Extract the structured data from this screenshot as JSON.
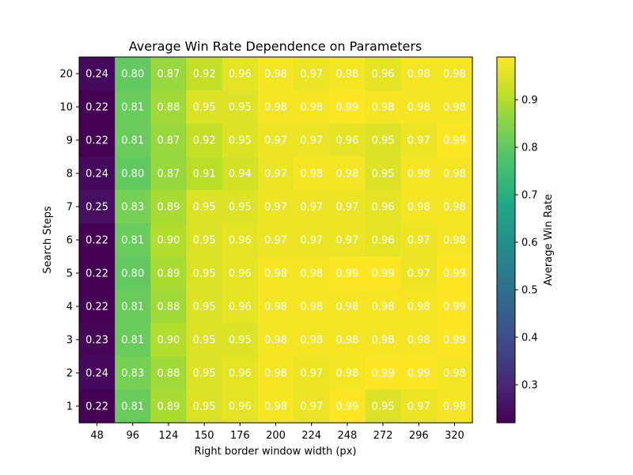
{
  "chart_data": {
    "type": "heatmap",
    "title": "Average Win Rate Dependence on Parameters",
    "xlabel": "Right border window width (px)",
    "ylabel": "Search Steps",
    "x_categories": [
      "48",
      "96",
      "124",
      "150",
      "176",
      "200",
      "224",
      "248",
      "272",
      "296",
      "320"
    ],
    "y_categories": [
      "20",
      "10",
      "9",
      "8",
      "7",
      "6",
      "5",
      "4",
      "3",
      "2",
      "1"
    ],
    "values": [
      [
        0.24,
        0.8,
        0.87,
        0.92,
        0.96,
        0.98,
        0.97,
        0.98,
        0.96,
        0.98,
        0.98
      ],
      [
        0.22,
        0.81,
        0.88,
        0.95,
        0.95,
        0.98,
        0.98,
        0.99,
        0.98,
        0.98,
        0.98
      ],
      [
        0.22,
        0.81,
        0.87,
        0.92,
        0.95,
        0.97,
        0.97,
        0.96,
        0.95,
        0.97,
        0.99
      ],
      [
        0.24,
        0.8,
        0.87,
        0.91,
        0.94,
        0.97,
        0.98,
        0.98,
        0.95,
        0.98,
        0.98
      ],
      [
        0.25,
        0.83,
        0.89,
        0.95,
        0.95,
        0.97,
        0.97,
        0.97,
        0.96,
        0.98,
        0.98
      ],
      [
        0.22,
        0.81,
        0.9,
        0.95,
        0.96,
        0.97,
        0.97,
        0.97,
        0.96,
        0.97,
        0.98
      ],
      [
        0.22,
        0.8,
        0.89,
        0.95,
        0.96,
        0.98,
        0.98,
        0.99,
        0.99,
        0.97,
        0.99
      ],
      [
        0.22,
        0.81,
        0.88,
        0.95,
        0.96,
        0.98,
        0.98,
        0.98,
        0.98,
        0.98,
        0.99
      ],
      [
        0.23,
        0.81,
        0.9,
        0.95,
        0.95,
        0.98,
        0.98,
        0.98,
        0.98,
        0.98,
        0.99
      ],
      [
        0.24,
        0.83,
        0.88,
        0.95,
        0.96,
        0.98,
        0.97,
        0.98,
        0.99,
        0.99,
        0.98
      ],
      [
        0.22,
        0.81,
        0.89,
        0.95,
        0.96,
        0.98,
        0.97,
        0.99,
        0.95,
        0.97,
        0.98
      ]
    ],
    "colormap": "viridis",
    "color_range": [
      0.22,
      0.99
    ],
    "cell_text_color": "#ffffff",
    "colorbar": {
      "label": "Average Win Rate",
      "ticks": [
        "0.3",
        "0.4",
        "0.5",
        "0.6",
        "0.7",
        "0.8",
        "0.9"
      ]
    }
  }
}
